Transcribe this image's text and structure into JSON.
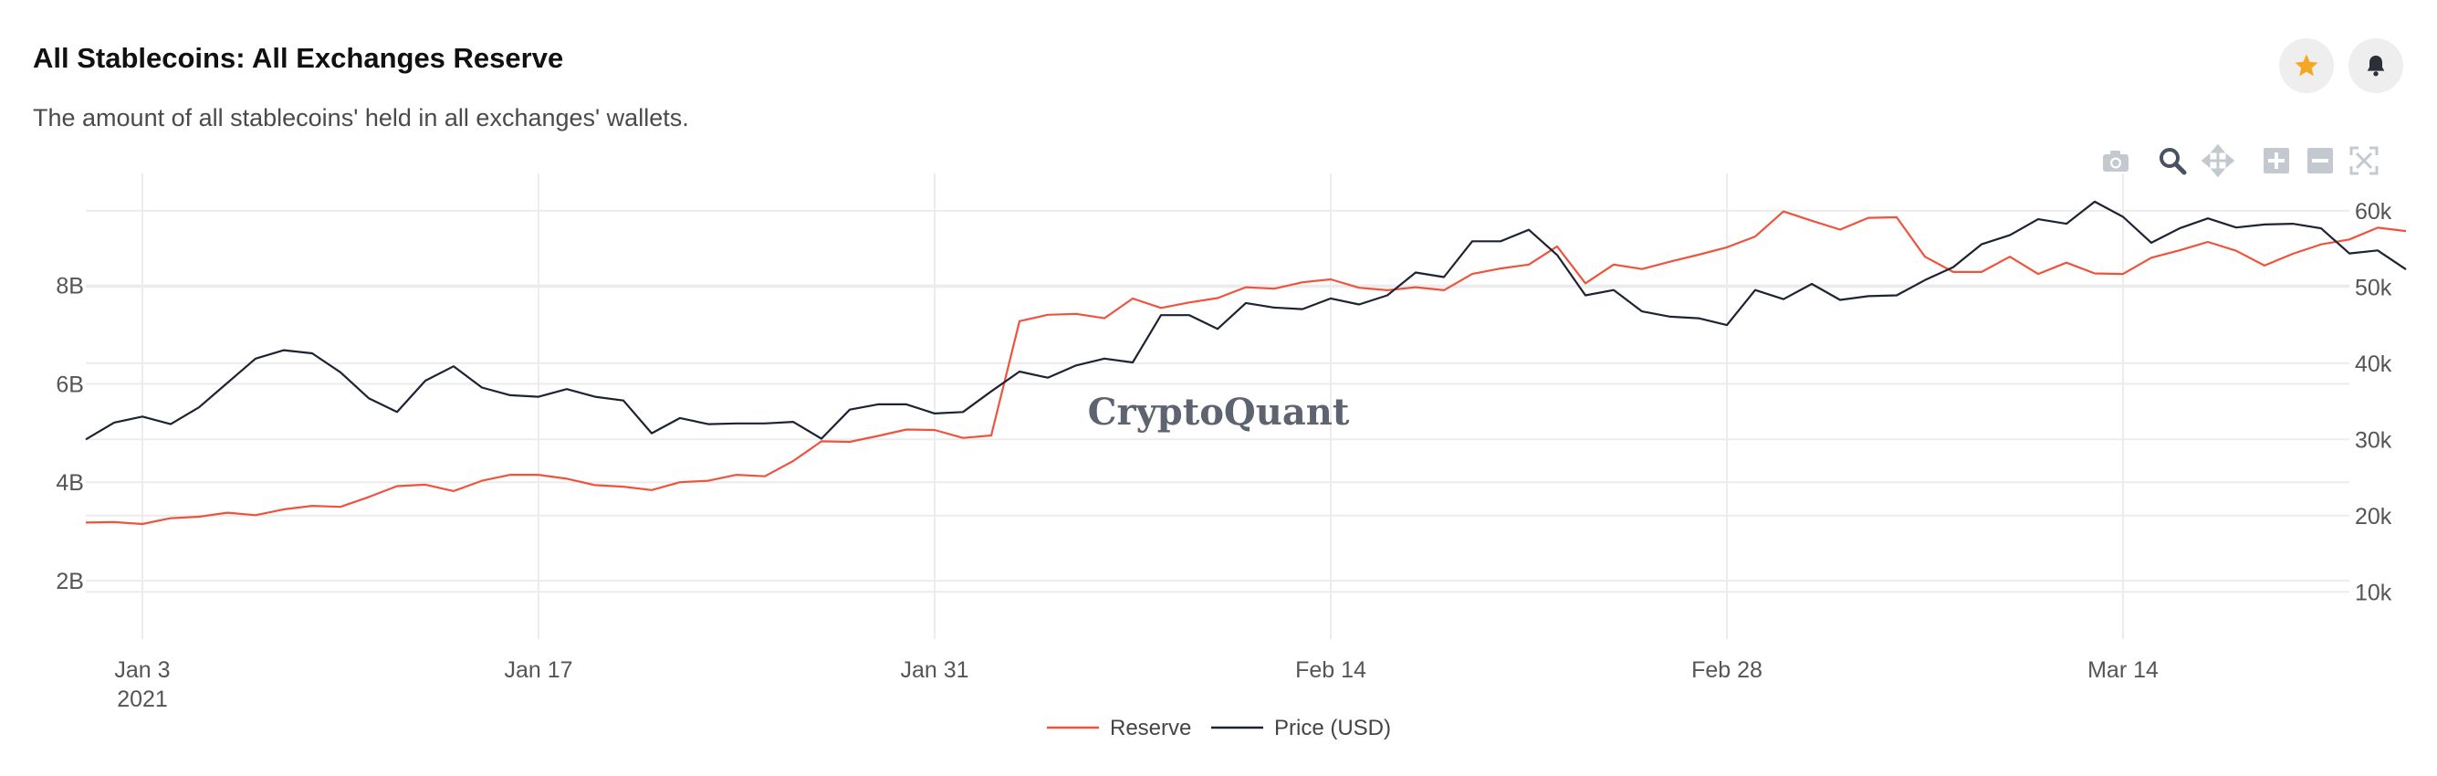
{
  "header": {
    "title": "All Stablecoins: All Exchanges Reserve",
    "subtitle": "The amount of all stablecoins' held in all exchanges' wallets.",
    "star_icon": "star-icon",
    "bell_icon": "bell-icon"
  },
  "toolbar": {
    "icons": [
      "camera-icon",
      "zoom-icon",
      "pan-icon",
      "zoom-in-icon",
      "zoom-out-icon",
      "autoscale-icon"
    ]
  },
  "watermark": "CryptoQuant",
  "colors": {
    "reserve": "#f0533c",
    "price": "#1d2331",
    "star": "#f5a623",
    "grid": "#ececec"
  },
  "chart_data": {
    "type": "line",
    "x_tick_labels": [
      "Jan 3",
      "Jan 17",
      "Jan 31",
      "Feb 14",
      "Feb 28",
      "Mar 14"
    ],
    "x_tick_year": "2021",
    "x_tick_days": [
      2,
      16,
      30,
      44,
      58,
      72
    ],
    "x_range_days": [
      0,
      80
    ],
    "x_start_date": "2021-01-01",
    "y_left": {
      "tick_values": [
        2,
        4,
        6,
        8
      ],
      "tick_labels": [
        "2B",
        "4B",
        "6B",
        "8B"
      ],
      "range": [
        1.0,
        9.9
      ]
    },
    "y_right": {
      "tick_values": [
        10,
        20,
        30,
        40,
        50,
        60
      ],
      "tick_labels": [
        "10k",
        "20k",
        "30k",
        "40k",
        "50k",
        "60k"
      ],
      "range": [
        5.0,
        62.5
      ]
    },
    "grid": true,
    "legend_position": "bottom-center",
    "series": [
      {
        "name": "Reserve",
        "axis": "left",
        "unit": "B",
        "values": [
          3.18,
          3.19,
          3.15,
          3.27,
          3.3,
          3.38,
          3.33,
          3.45,
          3.52,
          3.5,
          3.7,
          3.92,
          3.95,
          3.82,
          4.03,
          4.15,
          4.15,
          4.07,
          3.94,
          3.91,
          3.84,
          4.0,
          4.03,
          4.15,
          4.12,
          4.43,
          4.83,
          4.82,
          4.94,
          5.07,
          5.06,
          4.9,
          4.95,
          7.27,
          7.4,
          7.42,
          7.33,
          7.73,
          7.54,
          7.65,
          7.74,
          7.96,
          7.93,
          8.06,
          8.12,
          7.95,
          7.9,
          7.96,
          7.9,
          8.23,
          8.34,
          8.42,
          8.79,
          8.04,
          8.42,
          8.33,
          8.48,
          8.62,
          8.77,
          8.99,
          9.5,
          9.31,
          9.13,
          9.37,
          9.38,
          8.58,
          8.27,
          8.27,
          8.58,
          8.23,
          8.46,
          8.24,
          8.23,
          8.56,
          8.71,
          8.88,
          8.7,
          8.4,
          8.64,
          8.83,
          8.93,
          9.17,
          9.1
        ]
      },
      {
        "name": "Price (USD)",
        "axis": "right",
        "unit": "k",
        "values": [
          30.0,
          32.2,
          33.0,
          32.0,
          34.2,
          37.4,
          40.6,
          41.7,
          41.3,
          38.8,
          35.4,
          33.6,
          37.7,
          39.6,
          36.8,
          35.8,
          35.6,
          36.6,
          35.6,
          35.1,
          30.8,
          32.8,
          32.0,
          32.1,
          32.1,
          32.3,
          30.1,
          33.9,
          34.6,
          34.6,
          33.4,
          33.6,
          36.3,
          38.9,
          38.1,
          39.7,
          40.6,
          40.1,
          46.3,
          46.3,
          44.5,
          47.9,
          47.3,
          47.1,
          48.5,
          47.7,
          48.9,
          51.9,
          51.3,
          56.0,
          56.0,
          57.5,
          54.2,
          48.9,
          49.6,
          46.8,
          46.1,
          45.9,
          45.0,
          49.6,
          48.4,
          50.4,
          48.3,
          48.8,
          48.9,
          50.9,
          52.6,
          55.6,
          56.8,
          58.9,
          58.3,
          61.2,
          59.2,
          55.8,
          57.7,
          59.0,
          57.8,
          58.2,
          58.3,
          57.7,
          54.4,
          54.8,
          52.3
        ]
      }
    ]
  }
}
